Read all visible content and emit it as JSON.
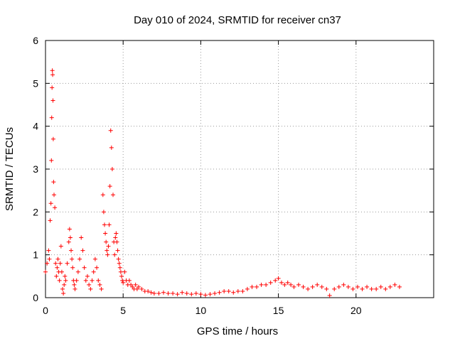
{
  "chart_data": {
    "type": "scatter",
    "title": "Day 010 of 2024, SRMTID for receiver cn37",
    "xlabel": "GPS time / hours",
    "ylabel": "SRMTID / TECUs",
    "xlim": [
      0,
      25
    ],
    "ylim": [
      0,
      6
    ],
    "xticks": [
      0,
      5,
      10,
      15,
      20
    ],
    "yticks": [
      0,
      1,
      2,
      3,
      4,
      5,
      6
    ],
    "grid": true,
    "marker": "plus",
    "color": "#ff0000",
    "series": [
      {
        "name": "SRMTID",
        "x": [
          0.0,
          0.1,
          0.2,
          0.25,
          0.3,
          0.35,
          0.38,
          0.4,
          0.42,
          0.44,
          0.46,
          0.48,
          0.5,
          0.52,
          0.55,
          0.6,
          0.65,
          0.7,
          0.75,
          0.8,
          0.85,
          0.9,
          0.95,
          1.0,
          1.05,
          1.1,
          1.15,
          1.2,
          1.25,
          1.3,
          1.4,
          1.5,
          1.55,
          1.6,
          1.65,
          1.7,
          1.75,
          1.8,
          1.85,
          1.9,
          2.0,
          2.1,
          2.2,
          2.3,
          2.4,
          2.5,
          2.6,
          2.7,
          2.8,
          2.9,
          3.0,
          3.1,
          3.2,
          3.3,
          3.4,
          3.5,
          3.6,
          3.7,
          3.75,
          3.8,
          3.85,
          3.9,
          3.95,
          4.0,
          4.05,
          4.1,
          4.15,
          4.2,
          4.25,
          4.3,
          4.35,
          4.4,
          4.45,
          4.5,
          4.55,
          4.6,
          4.65,
          4.7,
          4.75,
          4.8,
          4.85,
          4.9,
          4.95,
          5.0,
          5.1,
          5.2,
          5.3,
          5.4,
          5.5,
          5.6,
          5.7,
          5.8,
          5.9,
          6.0,
          6.2,
          6.4,
          6.6,
          6.8,
          7.0,
          7.3,
          7.6,
          7.9,
          8.2,
          8.5,
          8.8,
          9.1,
          9.4,
          9.7,
          10.0,
          10.3,
          10.6,
          10.9,
          11.2,
          11.5,
          11.8,
          12.1,
          12.4,
          12.7,
          13.0,
          13.3,
          13.6,
          13.9,
          14.2,
          14.5,
          14.8,
          15.0,
          15.2,
          15.4,
          15.6,
          15.8,
          16.0,
          16.3,
          16.6,
          16.9,
          17.2,
          17.5,
          17.8,
          18.1,
          18.3,
          18.6,
          18.9,
          19.2,
          19.5,
          19.8,
          20.1,
          20.4,
          20.7,
          21.0,
          21.3,
          21.6,
          21.9,
          22.2,
          22.5,
          22.8
        ],
        "y": [
          0.6,
          0.8,
          1.1,
          0.9,
          1.8,
          2.2,
          3.2,
          4.2,
          4.9,
          5.3,
          5.2,
          4.6,
          3.7,
          2.7,
          2.4,
          2.1,
          0.8,
          0.5,
          0.7,
          0.9,
          0.6,
          0.4,
          0.8,
          1.2,
          0.6,
          0.2,
          0.1,
          0.3,
          0.5,
          0.4,
          0.8,
          1.3,
          1.6,
          1.4,
          1.1,
          0.9,
          0.7,
          0.4,
          0.3,
          0.2,
          0.4,
          0.6,
          0.9,
          1.4,
          1.1,
          0.7,
          0.4,
          0.5,
          0.3,
          0.2,
          0.4,
          0.6,
          0.9,
          0.7,
          0.4,
          0.3,
          0.2,
          2.4,
          2.0,
          1.7,
          1.5,
          1.3,
          1.1,
          1.0,
          1.2,
          1.7,
          2.6,
          3.9,
          3.5,
          3.0,
          2.4,
          1.3,
          1.0,
          1.4,
          1.5,
          1.3,
          1.1,
          0.9,
          0.8,
          0.7,
          0.6,
          0.5,
          0.4,
          0.35,
          0.6,
          0.4,
          0.3,
          0.4,
          0.3,
          0.25,
          0.2,
          0.3,
          0.2,
          0.25,
          0.2,
          0.15,
          0.15,
          0.12,
          0.1,
          0.1,
          0.12,
          0.1,
          0.1,
          0.08,
          0.12,
          0.1,
          0.08,
          0.1,
          0.08,
          0.06,
          0.08,
          0.1,
          0.12,
          0.15,
          0.15,
          0.12,
          0.15,
          0.15,
          0.2,
          0.25,
          0.25,
          0.3,
          0.3,
          0.35,
          0.4,
          0.45,
          0.35,
          0.3,
          0.35,
          0.3,
          0.25,
          0.3,
          0.25,
          0.2,
          0.25,
          0.3,
          0.25,
          0.2,
          0.05,
          0.2,
          0.25,
          0.3,
          0.25,
          0.2,
          0.25,
          0.2,
          0.25,
          0.2,
          0.2,
          0.25,
          0.2,
          0.25,
          0.3,
          0.25
        ]
      }
    ]
  }
}
